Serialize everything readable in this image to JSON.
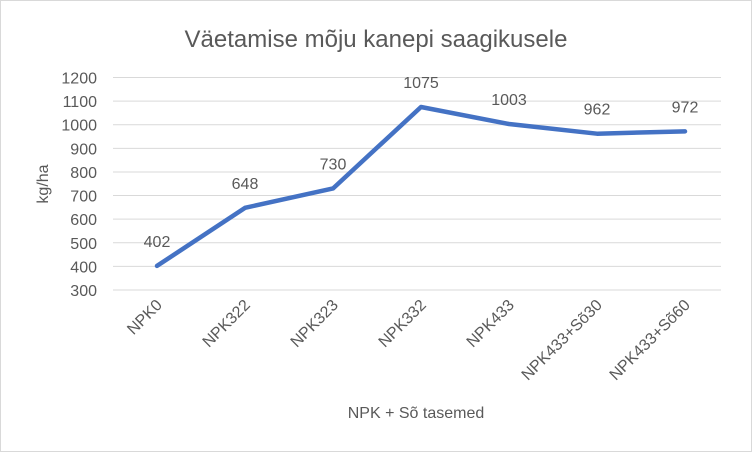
{
  "chart_data": {
    "type": "line",
    "title": "Väetamise mõju kanepi saagikusele",
    "xlabel": "NPK + Sõ tasemed",
    "ylabel": "kg/ha",
    "categories": [
      "NPK0",
      "NPK322",
      "NPK323",
      "NPK332",
      "NPK433",
      "NPK433+Sõ30",
      "NPK433+Sõ60"
    ],
    "series": [
      {
        "name": "Saagikus",
        "values": [
          402,
          648,
          730,
          1075,
          1003,
          962,
          972
        ]
      }
    ],
    "ylim": [
      300,
      1200
    ],
    "yticks": [
      300,
      400,
      500,
      600,
      700,
      800,
      900,
      1000,
      1100,
      1200
    ],
    "grid": true,
    "legend": "none",
    "data_labels": [
      "402",
      "648",
      "730",
      "1075",
      "1003",
      "962",
      "972"
    ],
    "colors": {
      "line": "#4472c4",
      "grid": "#d9d9d9",
      "text": "#595959"
    }
  }
}
